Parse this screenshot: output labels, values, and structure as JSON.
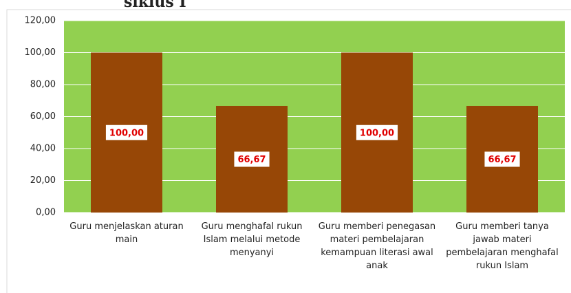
{
  "chart_data": {
    "type": "bar",
    "title": "siklus I",
    "categories": [
      "Guru menjelaskan aturan main",
      "Guru menghafal rukun Islam melalui metode menyanyi",
      "Guru memberi penegasan materi pembelajaran kemampuan literasi awal anak",
      "Guru memberi tanya jawab materi pembelajaran menghafal rukun Islam"
    ],
    "values": [
      100,
      66.67,
      100,
      66.67
    ],
    "value_labels": [
      "100,00",
      "66,67",
      "100,00",
      "66,67"
    ],
    "color": "#974706",
    "plot_background": "#92d050",
    "ylim": [
      0,
      120
    ],
    "yticks": [
      {
        "value": 0,
        "label": "0,00"
      },
      {
        "value": 20,
        "label": "20,00"
      },
      {
        "value": 40,
        "label": "40,00"
      },
      {
        "value": 60,
        "label": "60,00"
      },
      {
        "value": 80,
        "label": "80,00"
      },
      {
        "value": 100,
        "label": "100,00"
      },
      {
        "value": 120,
        "label": "120,00"
      }
    ],
    "grid": true
  }
}
